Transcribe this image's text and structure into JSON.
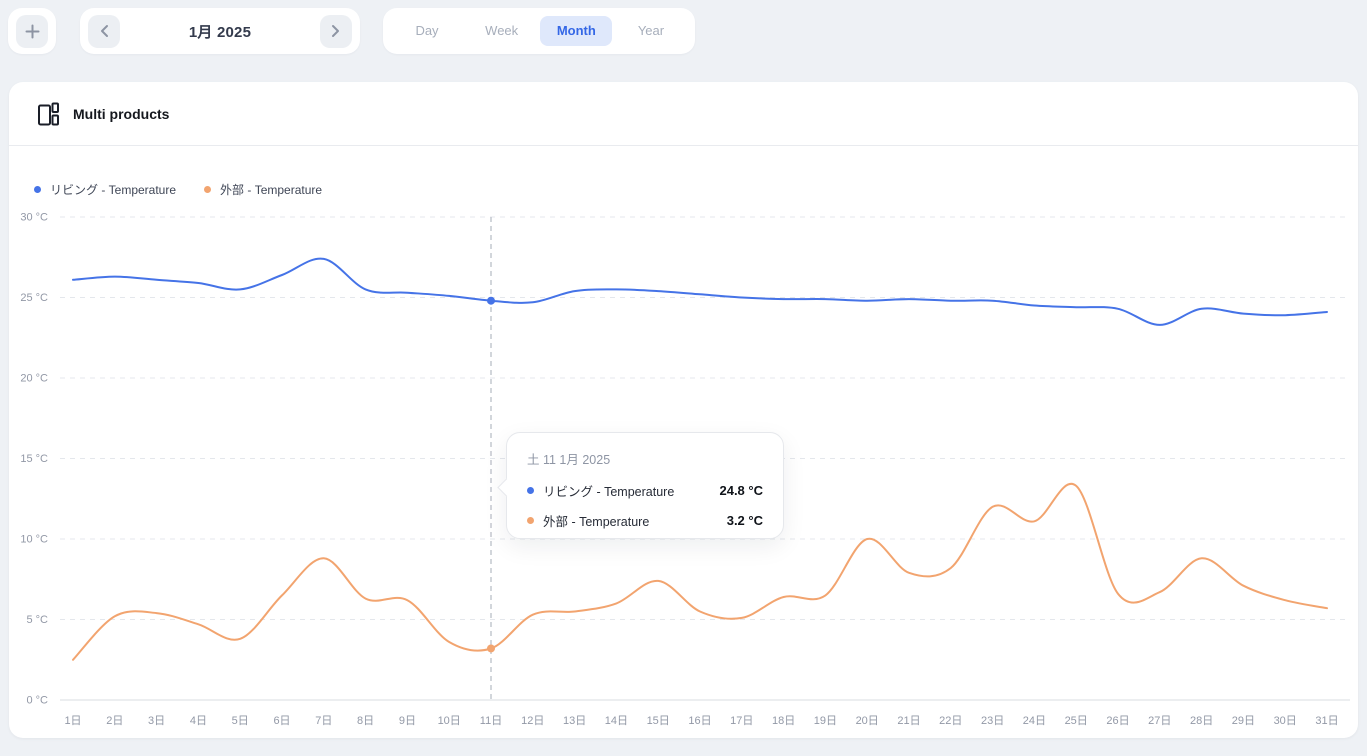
{
  "toolbar": {
    "add_label": "+",
    "date_nav": {
      "label": "1月 2025"
    },
    "view_tabs": [
      {
        "label": "Day",
        "active": false
      },
      {
        "label": "Week",
        "active": false
      },
      {
        "label": "Month",
        "active": true
      },
      {
        "label": "Year",
        "active": false
      }
    ]
  },
  "card": {
    "title": "Multi products"
  },
  "legend": [
    {
      "label": "リビング - Temperature",
      "color": "#4573e7"
    },
    {
      "label": "外部 - Temperature",
      "color": "#f2a46f"
    }
  ],
  "tooltip": {
    "date": "土 11 1月 2025",
    "rows": [
      {
        "label": "リビング - Temperature",
        "value": "24.8 °C",
        "color": "#4573e7"
      },
      {
        "label": "外部 - Temperature",
        "value": "3.2 °C",
        "color": "#f2a46f"
      }
    ]
  },
  "chart_data": {
    "type": "line",
    "title": "Multi products",
    "x": [
      1,
      2,
      3,
      4,
      5,
      6,
      7,
      8,
      9,
      10,
      11,
      12,
      13,
      14,
      15,
      16,
      17,
      18,
      19,
      20,
      21,
      22,
      23,
      24,
      25,
      26,
      27,
      28,
      29,
      30,
      31
    ],
    "x_labels": [
      "1日",
      "2日",
      "3日",
      "4日",
      "5日",
      "6日",
      "7日",
      "8日",
      "9日",
      "10日",
      "11日",
      "12日",
      "13日",
      "14日",
      "15日",
      "16日",
      "17日",
      "18日",
      "19日",
      "20日",
      "21日",
      "22日",
      "23日",
      "24日",
      "25日",
      "26日",
      "27日",
      "28日",
      "29日",
      "30日",
      "31日"
    ],
    "y_tick_labels": [
      "0 °C",
      "5 °C",
      "10 °C",
      "15 °C",
      "20 °C",
      "25 °C",
      "30 °C"
    ],
    "y_ticks": [
      0,
      5,
      10,
      15,
      20,
      25,
      30
    ],
    "ylim": [
      0,
      30
    ],
    "grid": "horizontal-dashed",
    "legend_position": "top-left",
    "series": [
      {
        "name": "リビング - Temperature",
        "color": "#4573e7",
        "values": [
          26.1,
          26.3,
          26.1,
          25.9,
          25.5,
          26.4,
          27.4,
          25.5,
          25.3,
          25.1,
          24.8,
          24.7,
          25.4,
          25.5,
          25.4,
          25.2,
          25.0,
          24.9,
          24.9,
          24.8,
          24.9,
          24.8,
          24.8,
          24.5,
          24.4,
          24.3,
          23.3,
          24.3,
          24.0,
          23.9,
          24.1
        ]
      },
      {
        "name": "外部 - Temperature",
        "color": "#f2a46f",
        "values": [
          2.5,
          5.2,
          5.4,
          4.7,
          3.8,
          6.5,
          8.8,
          6.3,
          6.2,
          3.6,
          3.2,
          5.3,
          5.5,
          6.0,
          7.4,
          5.5,
          5.1,
          6.4,
          6.5,
          10.0,
          7.9,
          8.2,
          12.0,
          11.1,
          13.3,
          6.6,
          6.7,
          8.8,
          7.1,
          6.2,
          5.7
        ]
      }
    ],
    "cursor": {
      "day": 11,
      "values": [
        24.8,
        3.2
      ]
    }
  },
  "colors": {
    "grid": "#e4e7ec",
    "zero_line": "#d9dce2",
    "cursor_line": "#c4c8cf",
    "axis_text": "#9298a6"
  }
}
